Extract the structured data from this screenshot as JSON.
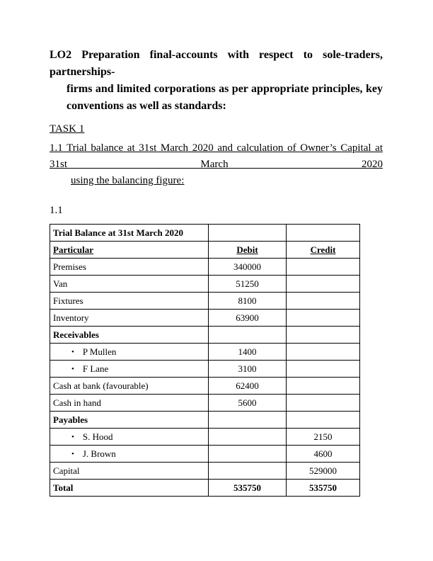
{
  "heading": {
    "lines": [
      "LO2 Preparation final-accounts with respect to sole-traders, partnerships-",
      "firms and limited corporations as per appropriate principles, key",
      "conventions as well as standards:"
    ]
  },
  "task": {
    "label": "TASK 1"
  },
  "section": {
    "lines": [
      "1.1 Trial balance at 31st March 2020 and calculation of Owner’s Capital at 31st March 2020",
      "using the balancing figure:"
    ]
  },
  "figure_label": "1.1",
  "table": {
    "title": "Trial Balance at 31st March 2020",
    "bullet_char": "•",
    "columns": [
      "Particular",
      "Debit",
      "Credit"
    ],
    "rows": [
      {
        "particular": "Premises",
        "debit": "340000",
        "credit": "",
        "style": "normal"
      },
      {
        "particular": "Van",
        "debit": "51250",
        "credit": "",
        "style": "normal"
      },
      {
        "particular": "Fixtures",
        "debit": "8100",
        "credit": "",
        "style": "normal"
      },
      {
        "particular": "Inventory",
        "debit": "63900",
        "credit": "",
        "style": "normal"
      },
      {
        "particular": "Receivables",
        "debit": "",
        "credit": "",
        "style": "group"
      },
      {
        "particular": "P Mullen",
        "debit": "1400",
        "credit": "",
        "style": "bullet"
      },
      {
        "particular": "F Lane",
        "debit": "3100",
        "credit": "",
        "style": "bullet"
      },
      {
        "particular": "Cash at bank (favourable)",
        "debit": "62400",
        "credit": "",
        "style": "normal"
      },
      {
        "particular": "Cash in hand",
        "debit": "5600",
        "credit": "",
        "style": "normal"
      },
      {
        "particular": "Payables",
        "debit": "",
        "credit": "",
        "style": "group"
      },
      {
        "particular": "S. Hood",
        "debit": "",
        "credit": "2150",
        "style": "bullet"
      },
      {
        "particular": "J. Brown",
        "debit": "",
        "credit": "4600",
        "style": "bullet"
      },
      {
        "particular": "Capital",
        "debit": "",
        "credit": "529000",
        "style": "normal"
      },
      {
        "particular": "Total",
        "debit": "535750",
        "credit": "535750",
        "style": "total"
      }
    ],
    "colors": {
      "text": "#000000",
      "border": "#000000",
      "page_background": "#ffffff"
    }
  }
}
